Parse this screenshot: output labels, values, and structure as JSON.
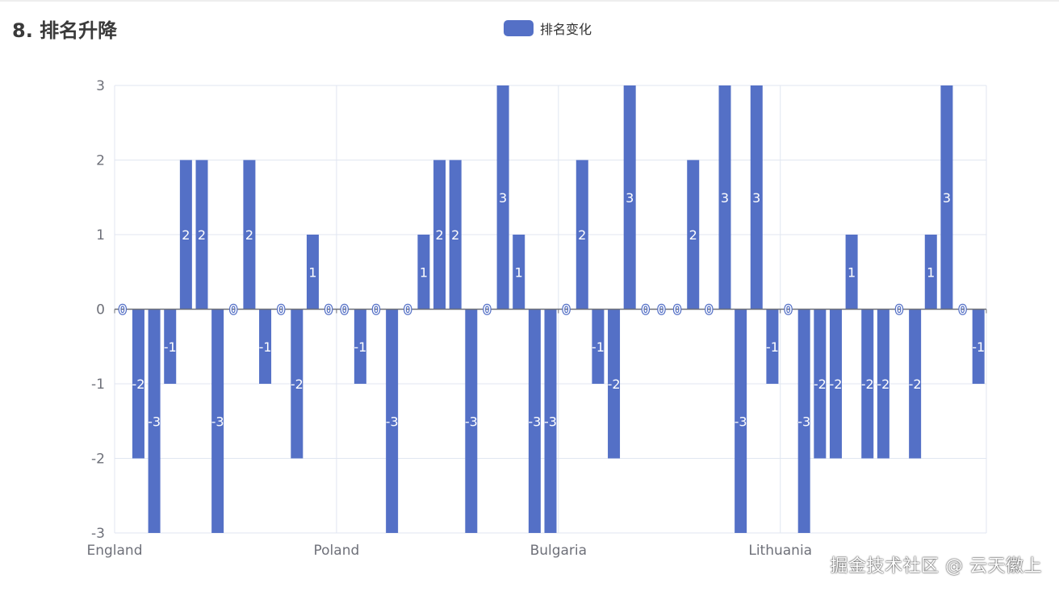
{
  "page": {
    "title": "8. 排名升降",
    "watermark": "掘金技术社区 @ 云天徽上"
  },
  "colors": {
    "bar": "#5470c6",
    "grid": "#e0e6f1",
    "axis": "#6e7079",
    "label": "#ffffff"
  },
  "chart_data": {
    "type": "bar",
    "legend": [
      "排名变化"
    ],
    "legend_position": "top-center",
    "grid": true,
    "x_tick_labels": [
      "England",
      "Poland",
      "Bulgaria",
      "Lithuania"
    ],
    "ylim": [
      -3,
      3
    ],
    "y_ticks": [
      -3,
      -2,
      -1,
      0,
      1,
      2,
      3
    ],
    "series": [
      {
        "name": "排名变化",
        "values": [
          0,
          -2,
          -3,
          -1,
          2,
          2,
          -3,
          0,
          2,
          -1,
          0,
          -2,
          1,
          0,
          0,
          -1,
          0,
          -3,
          0,
          1,
          2,
          2,
          -3,
          0,
          3,
          1,
          -3,
          -3,
          0,
          2,
          -1,
          -2,
          3,
          0,
          0,
          0,
          2,
          0,
          3,
          -3,
          3,
          -1,
          0,
          -3,
          -2,
          -2,
          1,
          -2,
          -2,
          0,
          -2,
          1,
          3,
          0,
          -1
        ]
      }
    ]
  }
}
